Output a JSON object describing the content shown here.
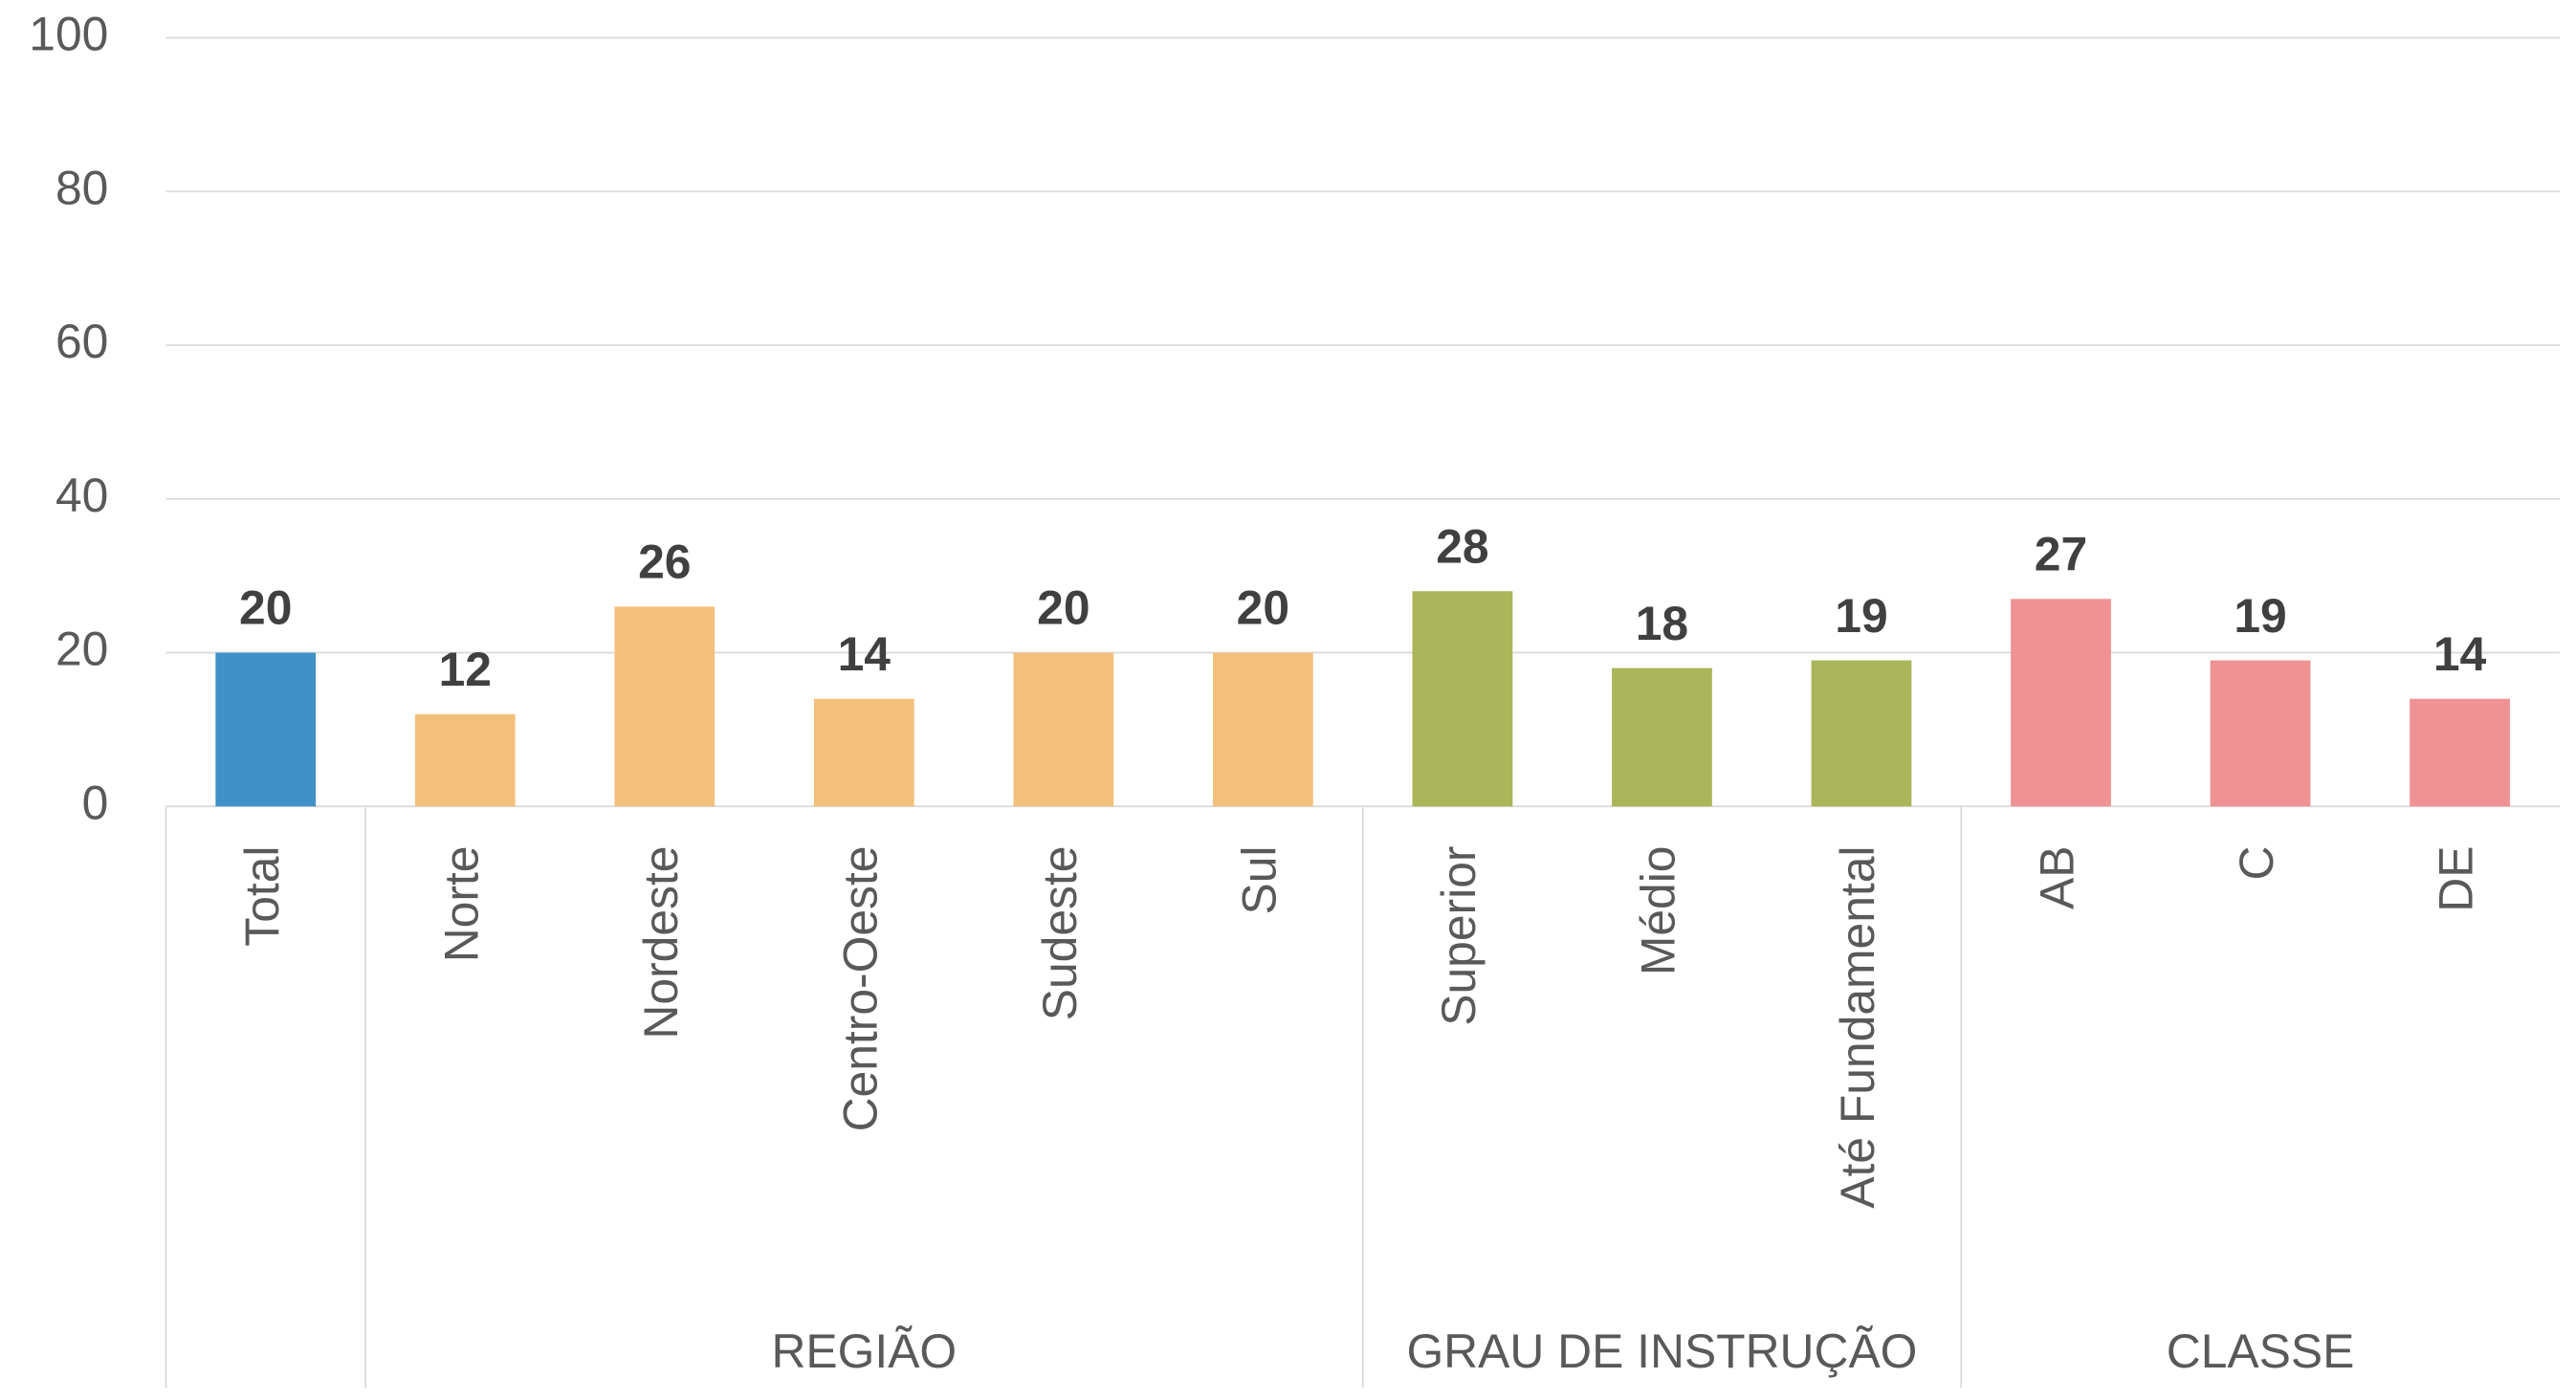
{
  "chart_data": {
    "type": "bar",
    "categories": [
      "Total",
      "Norte",
      "Nordeste",
      "Centro-Oeste",
      "Sudeste",
      "Sul",
      "Superior",
      "Médio",
      "Até Fundamental",
      "AB",
      "C",
      "DE"
    ],
    "values": [
      20,
      12,
      26,
      14,
      20,
      20,
      28,
      18,
      19,
      27,
      19,
      14
    ],
    "groups": [
      {
        "label": null,
        "count": 1,
        "color": "#3f91c8"
      },
      {
        "label": "REGIÃO",
        "count": 5,
        "color": "#f3c07c"
      },
      {
        "label": "GRAU DE INSTRUÇÃO",
        "count": 3,
        "color": "#abb55a"
      },
      {
        "label": "CLASSE",
        "count": 3,
        "color": "#ef9293"
      }
    ],
    "ylim": [
      0,
      100
    ],
    "yticks": [
      0,
      20,
      40,
      60,
      80,
      100
    ],
    "grid": true
  }
}
